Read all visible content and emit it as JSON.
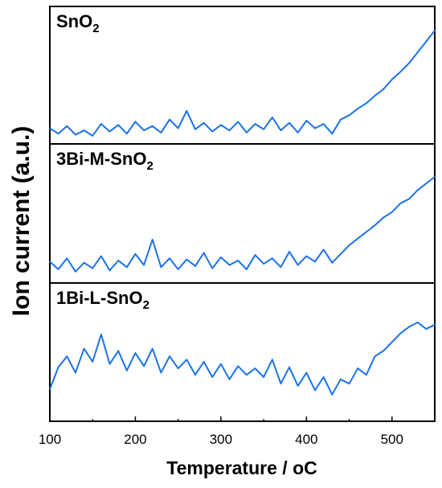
{
  "chart_data": {
    "type": "line",
    "xlabel": "Temperature / ",
    "xlabel_unit": "oC",
    "ylabel": "Ion current (a.u.)",
    "xlim": [
      100,
      550
    ],
    "xticks": [
      "100",
      "200",
      "300",
      "400",
      "500"
    ],
    "line_color": "#1a73e8",
    "panels": [
      {
        "label": {
          "prefix": "SnO",
          "subscript": "2"
        },
        "ylim": [
          0,
          1
        ],
        "x": [
          100,
          110,
          120,
          130,
          140,
          150,
          160,
          170,
          180,
          190,
          200,
          210,
          220,
          230,
          240,
          250,
          260,
          270,
          280,
          290,
          300,
          310,
          320,
          330,
          340,
          350,
          360,
          370,
          380,
          390,
          400,
          410,
          420,
          430,
          440,
          450,
          460,
          470,
          480,
          490,
          500,
          510,
          520,
          530,
          540,
          550
        ],
        "y": [
          0.1,
          0.05,
          0.12,
          0.04,
          0.08,
          0.03,
          0.14,
          0.07,
          0.13,
          0.05,
          0.16,
          0.08,
          0.12,
          0.06,
          0.18,
          0.1,
          0.26,
          0.09,
          0.15,
          0.07,
          0.13,
          0.08,
          0.16,
          0.06,
          0.14,
          0.09,
          0.2,
          0.08,
          0.15,
          0.06,
          0.17,
          0.1,
          0.14,
          0.05,
          0.18,
          0.22,
          0.28,
          0.33,
          0.4,
          0.46,
          0.55,
          0.62,
          0.7,
          0.8,
          0.9,
          1.0
        ]
      },
      {
        "label": {
          "prefix": "3Bi-M-SnO",
          "subscript": "2"
        },
        "ylim": [
          0,
          1
        ],
        "x": [
          100,
          110,
          120,
          130,
          140,
          150,
          160,
          170,
          180,
          190,
          200,
          210,
          220,
          230,
          240,
          250,
          260,
          270,
          280,
          290,
          300,
          310,
          320,
          330,
          340,
          350,
          360,
          370,
          380,
          390,
          400,
          410,
          420,
          430,
          440,
          450,
          460,
          470,
          480,
          490,
          500,
          510,
          520,
          530,
          540,
          550
        ],
        "y": [
          0.15,
          0.08,
          0.18,
          0.06,
          0.14,
          0.09,
          0.2,
          0.07,
          0.16,
          0.1,
          0.22,
          0.12,
          0.35,
          0.1,
          0.18,
          0.08,
          0.17,
          0.11,
          0.23,
          0.09,
          0.19,
          0.12,
          0.16,
          0.08,
          0.21,
          0.13,
          0.18,
          0.1,
          0.24,
          0.12,
          0.2,
          0.15,
          0.26,
          0.14,
          0.22,
          0.3,
          0.36,
          0.42,
          0.48,
          0.55,
          0.6,
          0.68,
          0.72,
          0.8,
          0.86,
          0.92
        ]
      },
      {
        "label": {
          "prefix": "1Bi-L-SnO",
          "subscript": "2"
        },
        "ylim": [
          0,
          1
        ],
        "x": [
          100,
          110,
          120,
          130,
          140,
          150,
          160,
          170,
          180,
          190,
          200,
          210,
          220,
          230,
          240,
          250,
          260,
          270,
          280,
          290,
          300,
          310,
          320,
          330,
          340,
          350,
          360,
          370,
          380,
          390,
          400,
          410,
          420,
          430,
          440,
          450,
          460,
          470,
          480,
          490,
          500,
          510,
          520,
          530,
          540,
          550
        ],
        "y": [
          0.25,
          0.45,
          0.55,
          0.4,
          0.62,
          0.5,
          0.75,
          0.48,
          0.6,
          0.42,
          0.58,
          0.46,
          0.62,
          0.4,
          0.55,
          0.44,
          0.52,
          0.38,
          0.5,
          0.36,
          0.48,
          0.34,
          0.46,
          0.38,
          0.44,
          0.36,
          0.52,
          0.3,
          0.45,
          0.28,
          0.4,
          0.24,
          0.36,
          0.2,
          0.34,
          0.3,
          0.44,
          0.38,
          0.55,
          0.6,
          0.68,
          0.76,
          0.82,
          0.86,
          0.8,
          0.84
        ]
      }
    ]
  }
}
